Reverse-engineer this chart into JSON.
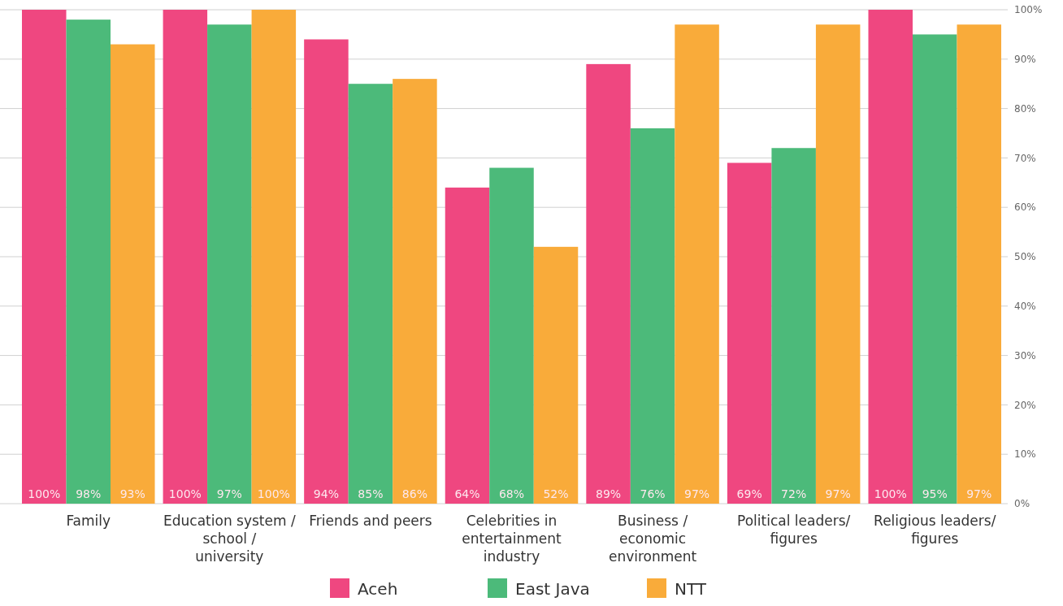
{
  "chart_data": {
    "type": "bar",
    "categories": [
      "Family",
      "Education system / school / university",
      "Friends and peers",
      "Celebrities in entertainment industry",
      "Business / economic environment",
      "Political leaders/ figures",
      "Religious leaders/ figures"
    ],
    "series": [
      {
        "name": "Aceh",
        "color": "#ef4780",
        "values": [
          100,
          100,
          94,
          64,
          89,
          69,
          100
        ],
        "value_labels": [
          "100%",
          "100%",
          "94%",
          "64%",
          "89%",
          "69%",
          "100%"
        ]
      },
      {
        "name": "East Java",
        "color": "#4cba7a",
        "values": [
          98,
          97,
          85,
          68,
          76,
          72,
          95
        ],
        "value_labels": [
          "98%",
          "97%",
          "85%",
          "68%",
          "76%",
          "72%",
          "95%"
        ]
      },
      {
        "name": "NTT",
        "color": "#f9ab3a",
        "values": [
          93,
          100,
          86,
          52,
          97,
          97,
          97
        ],
        "value_labels": [
          "93%",
          "100%",
          "86%",
          "52%",
          "97%",
          "97%",
          "97%"
        ]
      }
    ],
    "ylim": [
      0,
      100
    ],
    "yticks": [
      {
        "value": 0,
        "label": "0%"
      },
      {
        "value": 10,
        "label": "10%"
      },
      {
        "value": 20,
        "label": "20%"
      },
      {
        "value": 30,
        "label": "30%"
      },
      {
        "value": 40,
        "label": "40%"
      },
      {
        "value": 50,
        "label": "50%"
      },
      {
        "value": 60,
        "label": "60%"
      },
      {
        "value": 70,
        "label": "70%"
      },
      {
        "value": 80,
        "label": "80%"
      },
      {
        "value": 90,
        "label": "90%"
      },
      {
        "value": 100,
        "label": "100%"
      }
    ],
    "grid": "y",
    "legend": "bottom"
  }
}
